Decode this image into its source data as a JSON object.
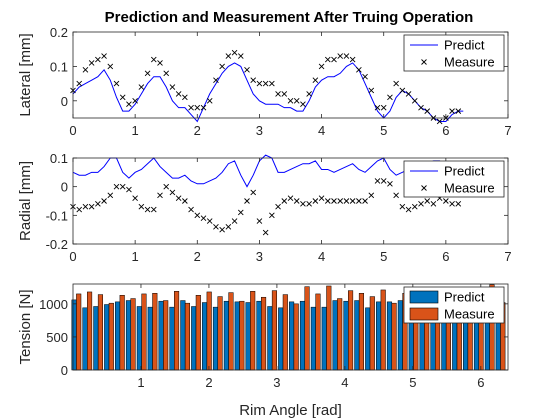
{
  "title": "Prediction and Measurement After Truing Operation",
  "colors": {
    "predict": "#0000ff",
    "measure": "#000000",
    "bar_predict": "#0072bd",
    "bar_measure": "#d95319"
  },
  "chart_data": [
    {
      "type": "line",
      "title": "Prediction and Measurement After Truing Operation",
      "xlabel": "",
      "ylabel": "Lateral [mm]",
      "xlim": [
        0,
        7
      ],
      "ylim": [
        -0.05,
        0.2
      ],
      "xticks": [
        "0",
        "1",
        "2",
        "3",
        "4",
        "5",
        "6",
        "7"
      ],
      "xtick_values": [
        0,
        1,
        2,
        3,
        4,
        5,
        6,
        7
      ],
      "yticks": [
        "0",
        "0.1",
        "0.2"
      ],
      "ytick_values": [
        0,
        0.1,
        0.2
      ],
      "legend": "top-right",
      "series": [
        {
          "name": "Predict",
          "style": "line",
          "x": [
            0.0,
            0.1,
            0.2,
            0.3,
            0.4,
            0.5,
            0.6,
            0.7,
            0.8,
            0.9,
            1.0,
            1.1,
            1.2,
            1.3,
            1.4,
            1.5,
            1.6,
            1.7,
            1.8,
            1.9,
            2.0,
            2.1,
            2.2,
            2.3,
            2.4,
            2.5,
            2.6,
            2.7,
            2.8,
            2.9,
            3.0,
            3.1,
            3.2,
            3.3,
            3.4,
            3.5,
            3.6,
            3.7,
            3.8,
            3.9,
            4.0,
            4.1,
            4.2,
            4.3,
            4.4,
            4.5,
            4.6,
            4.7,
            4.8,
            4.9,
            5.0,
            5.1,
            5.2,
            5.3,
            5.4,
            5.5,
            5.6,
            5.7,
            5.8,
            5.9,
            6.0,
            6.1,
            6.2,
            6.28
          ],
          "y": [
            0.02,
            0.04,
            0.05,
            0.06,
            0.07,
            0.09,
            0.06,
            0.01,
            -0.03,
            -0.03,
            -0.01,
            0.02,
            0.05,
            0.07,
            0.07,
            0.04,
            0.0,
            -0.02,
            -0.02,
            -0.04,
            -0.06,
            -0.02,
            0.02,
            0.05,
            0.08,
            0.1,
            0.11,
            0.1,
            0.06,
            0.02,
            0.0,
            -0.01,
            -0.01,
            -0.01,
            -0.02,
            -0.02,
            -0.03,
            -0.03,
            0.0,
            0.04,
            0.06,
            0.07,
            0.07,
            0.08,
            0.1,
            0.11,
            0.09,
            0.05,
            0.01,
            -0.03,
            -0.05,
            -0.03,
            0.01,
            0.03,
            0.02,
            0.0,
            -0.02,
            -0.03,
            -0.05,
            -0.06,
            -0.06,
            -0.04,
            -0.03,
            -0.03
          ]
        },
        {
          "name": "Measure",
          "style": "marker-x",
          "x": [
            0.0,
            0.1,
            0.2,
            0.3,
            0.4,
            0.5,
            0.6,
            0.7,
            0.8,
            0.9,
            1.0,
            1.1,
            1.2,
            1.3,
            1.4,
            1.5,
            1.6,
            1.7,
            1.8,
            1.9,
            2.0,
            2.1,
            2.2,
            2.3,
            2.4,
            2.5,
            2.6,
            2.7,
            2.8,
            2.9,
            3.0,
            3.1,
            3.2,
            3.3,
            3.4,
            3.5,
            3.6,
            3.7,
            3.8,
            3.9,
            4.0,
            4.1,
            4.2,
            4.3,
            4.4,
            4.5,
            4.6,
            4.7,
            4.8,
            4.9,
            5.0,
            5.1,
            5.2,
            5.3,
            5.4,
            5.5,
            5.6,
            5.7,
            5.8,
            5.9,
            6.0,
            6.1,
            6.2
          ],
          "y": [
            0.03,
            0.05,
            0.09,
            0.11,
            0.12,
            0.13,
            0.1,
            0.05,
            0.01,
            -0.01,
            0.0,
            0.04,
            0.08,
            0.12,
            0.11,
            0.08,
            0.04,
            0.02,
            0.01,
            -0.02,
            -0.02,
            -0.02,
            0.0,
            0.06,
            0.1,
            0.13,
            0.14,
            0.13,
            0.09,
            0.06,
            0.05,
            0.05,
            0.05,
            0.02,
            0.02,
            0.0,
            0.0,
            -0.01,
            0.02,
            0.06,
            0.1,
            0.12,
            0.12,
            0.13,
            0.13,
            0.12,
            0.09,
            0.07,
            0.03,
            -0.02,
            -0.02,
            0.01,
            0.05,
            0.03,
            0.02,
            0.0,
            -0.02,
            -0.03,
            -0.05,
            -0.06,
            -0.05,
            -0.03,
            -0.03
          ]
        }
      ]
    },
    {
      "type": "line",
      "xlabel": "",
      "ylabel": "Radial [mm]",
      "xlim": [
        0,
        7
      ],
      "ylim": [
        -0.2,
        0.1
      ],
      "xticks": [
        "0",
        "1",
        "2",
        "3",
        "4",
        "5",
        "6",
        "7"
      ],
      "xtick_values": [
        0,
        1,
        2,
        3,
        4,
        5,
        6,
        7
      ],
      "yticks": [
        "-0.2",
        "-0.1",
        "0",
        "0.1"
      ],
      "ytick_values": [
        -0.2,
        -0.1,
        0,
        0.1
      ],
      "legend": "top-right",
      "series": [
        {
          "name": "Predict",
          "style": "line",
          "x": [
            0.0,
            0.1,
            0.2,
            0.3,
            0.4,
            0.5,
            0.6,
            0.7,
            0.8,
            0.9,
            1.0,
            1.1,
            1.2,
            1.3,
            1.4,
            1.5,
            1.6,
            1.7,
            1.8,
            1.9,
            2.0,
            2.1,
            2.2,
            2.3,
            2.4,
            2.5,
            2.6,
            2.7,
            2.8,
            2.9,
            3.0,
            3.1,
            3.2,
            3.3,
            3.4,
            3.5,
            3.6,
            3.7,
            3.8,
            3.9,
            4.0,
            4.1,
            4.2,
            4.3,
            4.4,
            4.5,
            4.6,
            4.7,
            4.8,
            4.9,
            5.0,
            5.1,
            5.2,
            5.3,
            5.4,
            5.5,
            5.6,
            5.7,
            5.8,
            5.9,
            6.0,
            6.1,
            6.2,
            6.28
          ],
          "y": [
            0.05,
            0.04,
            0.04,
            0.05,
            0.05,
            0.07,
            0.1,
            0.1,
            0.05,
            0.03,
            0.05,
            0.06,
            0.08,
            0.1,
            0.07,
            0.05,
            0.03,
            0.03,
            0.04,
            0.02,
            0.01,
            0.01,
            0.02,
            0.03,
            0.05,
            0.08,
            0.09,
            0.04,
            0.0,
            0.04,
            0.09,
            0.11,
            0.1,
            0.05,
            0.05,
            0.06,
            0.07,
            0.08,
            0.08,
            0.09,
            0.06,
            0.06,
            0.05,
            0.06,
            0.07,
            0.08,
            0.06,
            0.05,
            0.07,
            0.09,
            0.1,
            0.06,
            0.04,
            0.05,
            0.06,
            0.07,
            0.08,
            0.08,
            0.09,
            0.09,
            0.07,
            0.06,
            0.05,
            0.05
          ]
        },
        {
          "name": "Measure",
          "style": "marker-x",
          "x": [
            0.0,
            0.1,
            0.2,
            0.3,
            0.4,
            0.5,
            0.6,
            0.7,
            0.8,
            0.9,
            1.0,
            1.1,
            1.2,
            1.3,
            1.4,
            1.5,
            1.6,
            1.7,
            1.8,
            1.9,
            2.0,
            2.1,
            2.2,
            2.3,
            2.4,
            2.5,
            2.6,
            2.7,
            2.8,
            2.9,
            3.0,
            3.1,
            3.2,
            3.3,
            3.4,
            3.5,
            3.6,
            3.7,
            3.8,
            3.9,
            4.0,
            4.1,
            4.2,
            4.3,
            4.4,
            4.5,
            4.6,
            4.7,
            4.8,
            4.9,
            5.0,
            5.1,
            5.2,
            5.3,
            5.4,
            5.5,
            5.6,
            5.7,
            5.8,
            5.9,
            6.0,
            6.1,
            6.2
          ],
          "y": [
            -0.07,
            -0.08,
            -0.07,
            -0.07,
            -0.06,
            -0.05,
            -0.03,
            0.0,
            0.0,
            -0.01,
            -0.04,
            -0.07,
            -0.08,
            -0.08,
            -0.03,
            0.0,
            -0.02,
            -0.04,
            -0.05,
            -0.08,
            -0.1,
            -0.11,
            -0.12,
            -0.14,
            -0.15,
            -0.14,
            -0.12,
            -0.09,
            -0.05,
            -0.02,
            -0.12,
            -0.16,
            -0.1,
            -0.07,
            -0.05,
            -0.04,
            -0.05,
            -0.06,
            -0.06,
            -0.05,
            -0.04,
            -0.05,
            -0.05,
            -0.05,
            -0.05,
            -0.05,
            -0.05,
            -0.05,
            -0.03,
            0.02,
            0.02,
            0.01,
            -0.03,
            -0.07,
            -0.08,
            -0.07,
            -0.06,
            -0.05,
            -0.06,
            -0.04,
            -0.05,
            -0.06,
            -0.06
          ]
        }
      ]
    },
    {
      "type": "bar",
      "xlabel": "Rim Angle [rad]",
      "ylabel": "Tension [N]",
      "xlim": [
        0,
        6.4
      ],
      "ylim": [
        0,
        1300
      ],
      "xticks": [
        "1",
        "2",
        "3",
        "4",
        "5",
        "6"
      ],
      "xtick_values": [
        1,
        2,
        3,
        4,
        5,
        6
      ],
      "yticks": [
        "0",
        "500",
        "1000"
      ],
      "ytick_values": [
        0,
        500,
        1000
      ],
      "legend": "top-right",
      "x": [
        0.05,
        0.21,
        0.37,
        0.53,
        0.69,
        0.85,
        1.01,
        1.17,
        1.33,
        1.49,
        1.65,
        1.81,
        1.97,
        2.13,
        2.29,
        2.45,
        2.61,
        2.77,
        2.93,
        3.09,
        3.25,
        3.41,
        3.57,
        3.73,
        3.89,
        4.05,
        4.21,
        4.37,
        4.53,
        4.69,
        4.85,
        5.01,
        5.17,
        5.33,
        5.49,
        5.65,
        5.81,
        5.97,
        6.13,
        6.29
      ],
      "series": [
        {
          "name": "Predict",
          "values": [
            1060,
            940,
            960,
            990,
            1030,
            1050,
            960,
            950,
            1040,
            950,
            1050,
            960,
            1020,
            950,
            1040,
            1030,
            1020,
            1040,
            960,
            940,
            1030,
            1040,
            950,
            950,
            1050,
            1040,
            1050,
            940,
            1030,
            1030,
            1050,
            960,
            950,
            1040,
            1050,
            1040,
            1050,
            1030,
            940,
            950
          ]
        },
        {
          "name": "Measure",
          "values": [
            1150,
            1180,
            1140,
            1010,
            1130,
            1080,
            1150,
            1160,
            1050,
            1190,
            1010,
            1130,
            1180,
            1110,
            1170,
            1040,
            1190,
            1100,
            1200,
            1140,
            1000,
            1260,
            1150,
            1270,
            1080,
            1200,
            1160,
            1110,
            1210,
            1010,
            1160,
            1140,
            1040,
            1200,
            1040,
            1220,
            1140,
            1040,
            1290,
            1020
          ]
        }
      ]
    }
  ]
}
